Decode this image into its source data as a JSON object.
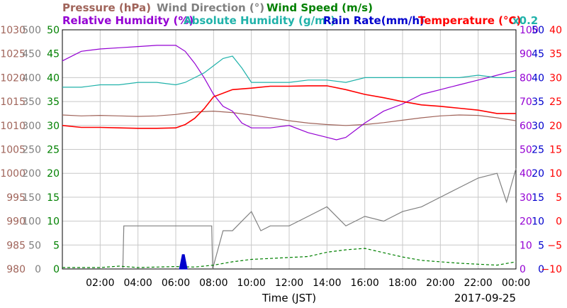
{
  "chart_data": {
    "type": "line",
    "xlabel": "Time (JST)",
    "date_label": "2017-09-25",
    "x_ticks": [
      "02:00",
      "04:00",
      "06:00",
      "08:00",
      "10:00",
      "12:00",
      "14:00",
      "16:00",
      "18:00",
      "20:00",
      "22:00",
      "00:00"
    ],
    "x_range_hours": [
      0,
      24
    ],
    "grid": true,
    "scale_factor_label": "x0.2",
    "axes": [
      {
        "label": "Pressure (hPa)",
        "color": "#a0645a",
        "ticks": [
          "1030",
          "1025",
          "1020",
          "1015",
          "1010",
          "1005",
          "1000",
          "995",
          "990",
          "985",
          "980"
        ],
        "range": [
          980,
          1030
        ]
      },
      {
        "label": "Wind Direction (°)",
        "color": "#808080",
        "ticks": [
          "500",
          "450",
          "400",
          "350",
          "300",
          "250",
          "200",
          "150",
          "100",
          "50",
          "0"
        ],
        "range": [
          0,
          500
        ]
      },
      {
        "label": "Wind Speed (m/s)",
        "color": "#008000",
        "ticks": [
          "50",
          "45",
          "40",
          "35",
          "30",
          "25",
          "20",
          "15",
          "10",
          "5",
          "0"
        ],
        "range": [
          0,
          50
        ]
      },
      {
        "label": "Relative Humidity (%)",
        "color": "#9400d3",
        "ticks": [
          "100",
          "90",
          "80",
          "70",
          "60",
          "50",
          "40",
          "30",
          "20",
          "10",
          "0"
        ],
        "range": [
          0,
          100
        ]
      },
      {
        "label": "Absolute Humidity (g/m³)",
        "color": "#20b2aa",
        "range": [
          0,
          50
        ]
      },
      {
        "label": "Rain Rate(mm/h)",
        "color": "#0000cd",
        "ticks": [
          "50",
          "45",
          "40",
          "35",
          "30",
          "25",
          "20",
          "15",
          "10",
          "5",
          "0"
        ],
        "range": [
          0,
          50
        ]
      },
      {
        "label": "Temperature (°C)",
        "color": "#ff0000",
        "ticks": [
          "40",
          "35",
          "30",
          "25",
          "20",
          "15",
          "10",
          "5",
          "0",
          "−5",
          "−10"
        ],
        "range": [
          -10,
          40
        ]
      }
    ],
    "series": [
      {
        "name": "Pressure (hPa)",
        "color": "#a0645a",
        "x": [
          0,
          1,
          2,
          3,
          4,
          5,
          6,
          7,
          8,
          9,
          10,
          11,
          12,
          13,
          14,
          15,
          16,
          17,
          18,
          19,
          20,
          21,
          22,
          23,
          24
        ],
        "y": [
          1012.2,
          1012.0,
          1012.1,
          1012.0,
          1011.9,
          1012.0,
          1012.3,
          1012.8,
          1013.0,
          1012.7,
          1012.2,
          1011.6,
          1011.0,
          1010.5,
          1010.2,
          1010.0,
          1010.2,
          1010.6,
          1011.1,
          1011.6,
          1012.0,
          1012.2,
          1012.1,
          1011.6,
          1011.0
        ]
      },
      {
        "name": "Wind Direction (°)",
        "color": "#808080",
        "x": [
          3.2,
          3.25,
          7.9,
          7.95,
          8.5,
          9.0,
          9.5,
          10.0,
          10.5,
          11.0,
          12.0,
          13.0,
          14.0,
          15.0,
          16.0,
          17.0,
          18.0,
          19.0,
          20.0,
          21.0,
          22.0,
          23.0,
          23.5,
          24.0
        ],
        "y": [
          0,
          90,
          90,
          0,
          80,
          80,
          100,
          120,
          80,
          90,
          90,
          110,
          130,
          90,
          110,
          100,
          120,
          130,
          150,
          170,
          190,
          200,
          140,
          210
        ]
      },
      {
        "name": "Wind Speed (m/s)",
        "color": "#008000",
        "x": [
          0,
          2,
          3,
          4,
          5,
          6,
          7,
          8,
          9,
          10,
          11,
          12,
          13,
          14,
          15,
          16,
          17,
          18,
          19,
          20,
          21,
          22,
          23,
          24
        ],
        "y": [
          0.3,
          0.3,
          0.6,
          0.3,
          0.4,
          0.5,
          0.4,
          0.8,
          1.5,
          2.0,
          2.2,
          2.4,
          2.6,
          3.5,
          4.0,
          4.3,
          3.4,
          2.5,
          1.8,
          1.5,
          1.2,
          1.0,
          0.8,
          1.5
        ]
      },
      {
        "name": "Relative Humidity (%)",
        "color": "#9400d3",
        "x": [
          0,
          1,
          2,
          3,
          4,
          5,
          6,
          6.5,
          7,
          7.5,
          8,
          8.5,
          9,
          9.5,
          10,
          11,
          12,
          13,
          14,
          14.5,
          15,
          16,
          17,
          18,
          19,
          20,
          21,
          22,
          23,
          24
        ],
        "y": [
          87,
          91,
          92,
          92.5,
          93,
          93.5,
          93.5,
          91,
          86,
          80,
          73,
          68,
          66,
          61,
          59,
          59,
          60,
          57,
          55,
          54,
          55,
          61,
          66,
          69,
          73,
          75,
          77,
          79,
          81,
          83
        ]
      },
      {
        "name": "Absolute Humidity (g/m³)",
        "color": "#20b2aa",
        "x": [
          0,
          1,
          2,
          3,
          4,
          5,
          6,
          6.5,
          7,
          7.5,
          8,
          8.5,
          9,
          9.5,
          10,
          11,
          12,
          13,
          14,
          15,
          16,
          17,
          18,
          19,
          20,
          21,
          22,
          23,
          24
        ],
        "y": [
          38,
          38,
          38.5,
          38.5,
          39,
          39,
          38.5,
          39,
          40,
          41,
          42.5,
          44,
          44.5,
          42,
          39,
          39,
          39,
          39.5,
          39.5,
          39,
          40,
          40,
          40,
          40,
          40,
          40,
          40.5,
          40,
          40
        ]
      },
      {
        "name": "Rain Rate(mm/h)",
        "color": "#0000cd",
        "x": [
          6.2,
          6.35,
          6.45,
          6.6
        ],
        "y": [
          0,
          3,
          3,
          0
        ]
      },
      {
        "name": "Temperature (°C)",
        "color": "#ff0000",
        "x": [
          0,
          1,
          2,
          3,
          4,
          5,
          6,
          6.5,
          7,
          7.5,
          8,
          9,
          10,
          11,
          12,
          13,
          14,
          15,
          16,
          17,
          18,
          19,
          20,
          21,
          22,
          23,
          24
        ],
        "y": [
          20,
          19.6,
          19.6,
          19.5,
          19.4,
          19.4,
          19.5,
          20.2,
          21.5,
          23.5,
          26,
          27.5,
          27.8,
          28.2,
          28.2,
          28.3,
          28.3,
          27.5,
          26.5,
          25.8,
          25,
          24.3,
          24,
          23.6,
          23.2,
          22.5,
          22.5
        ]
      }
    ]
  }
}
